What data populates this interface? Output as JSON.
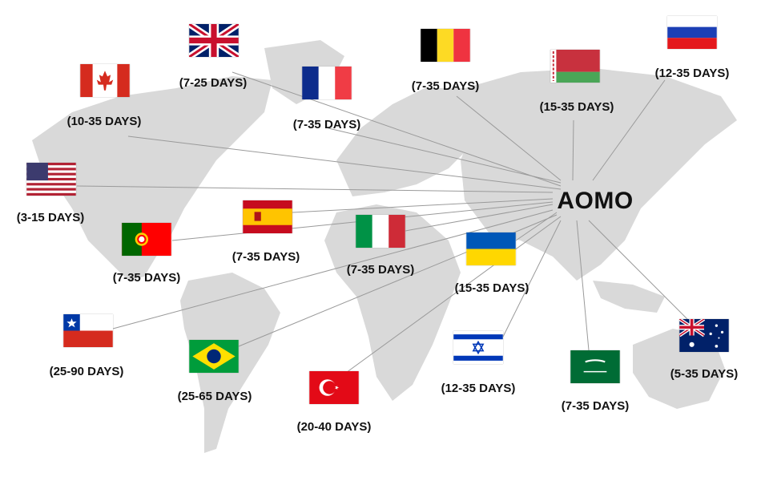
{
  "brand": "AOMO",
  "colors": {
    "land": "#d9d9d9",
    "line": "#9a9a9a",
    "text": "#111111"
  },
  "destinations": [
    {
      "country": "United Kingdom",
      "flag": "uk-flag",
      "days": "(7-25 DAYS)"
    },
    {
      "country": "Canada",
      "flag": "canada-flag",
      "days": "(10-35 DAYS)"
    },
    {
      "country": "France",
      "flag": "france-flag",
      "days": "(7-35 DAYS)"
    },
    {
      "country": "Belgium",
      "flag": "belgium-flag",
      "days": "(7-35 DAYS)"
    },
    {
      "country": "Belarus",
      "flag": "belarus-flag",
      "days": "(15-35 DAYS)"
    },
    {
      "country": "Russia",
      "flag": "russia-flag",
      "days": "(12-35 DAYS)"
    },
    {
      "country": "United States",
      "flag": "usa-flag",
      "days": "(3-15 DAYS)"
    },
    {
      "country": "Spain",
      "flag": "spain-flag",
      "days": "(7-35 DAYS)"
    },
    {
      "country": "Portugal",
      "flag": "portugal-flag",
      "days": "(7-35 DAYS)"
    },
    {
      "country": "Italy",
      "flag": "italy-flag",
      "days": "(7-35 DAYS)"
    },
    {
      "country": "Ukraine",
      "flag": "ukraine-flag",
      "days": "(15-35 DAYS)"
    },
    {
      "country": "Chile",
      "flag": "chile-flag",
      "days": "(25-90 DAYS)"
    },
    {
      "country": "Brazil",
      "flag": "brazil-flag",
      "days": "(25-65 DAYS)"
    },
    {
      "country": "Turkey",
      "flag": "turkey-flag",
      "days": "(20-40 DAYS)"
    },
    {
      "country": "Israel",
      "flag": "israel-flag",
      "days": "(12-35 DAYS)"
    },
    {
      "country": "Saudi Arabia",
      "flag": "saudi-flag",
      "days": "(7-35 DAYS)"
    },
    {
      "country": "Australia",
      "flag": "australia-flag",
      "days": "(5-35 DAYS)"
    }
  ]
}
